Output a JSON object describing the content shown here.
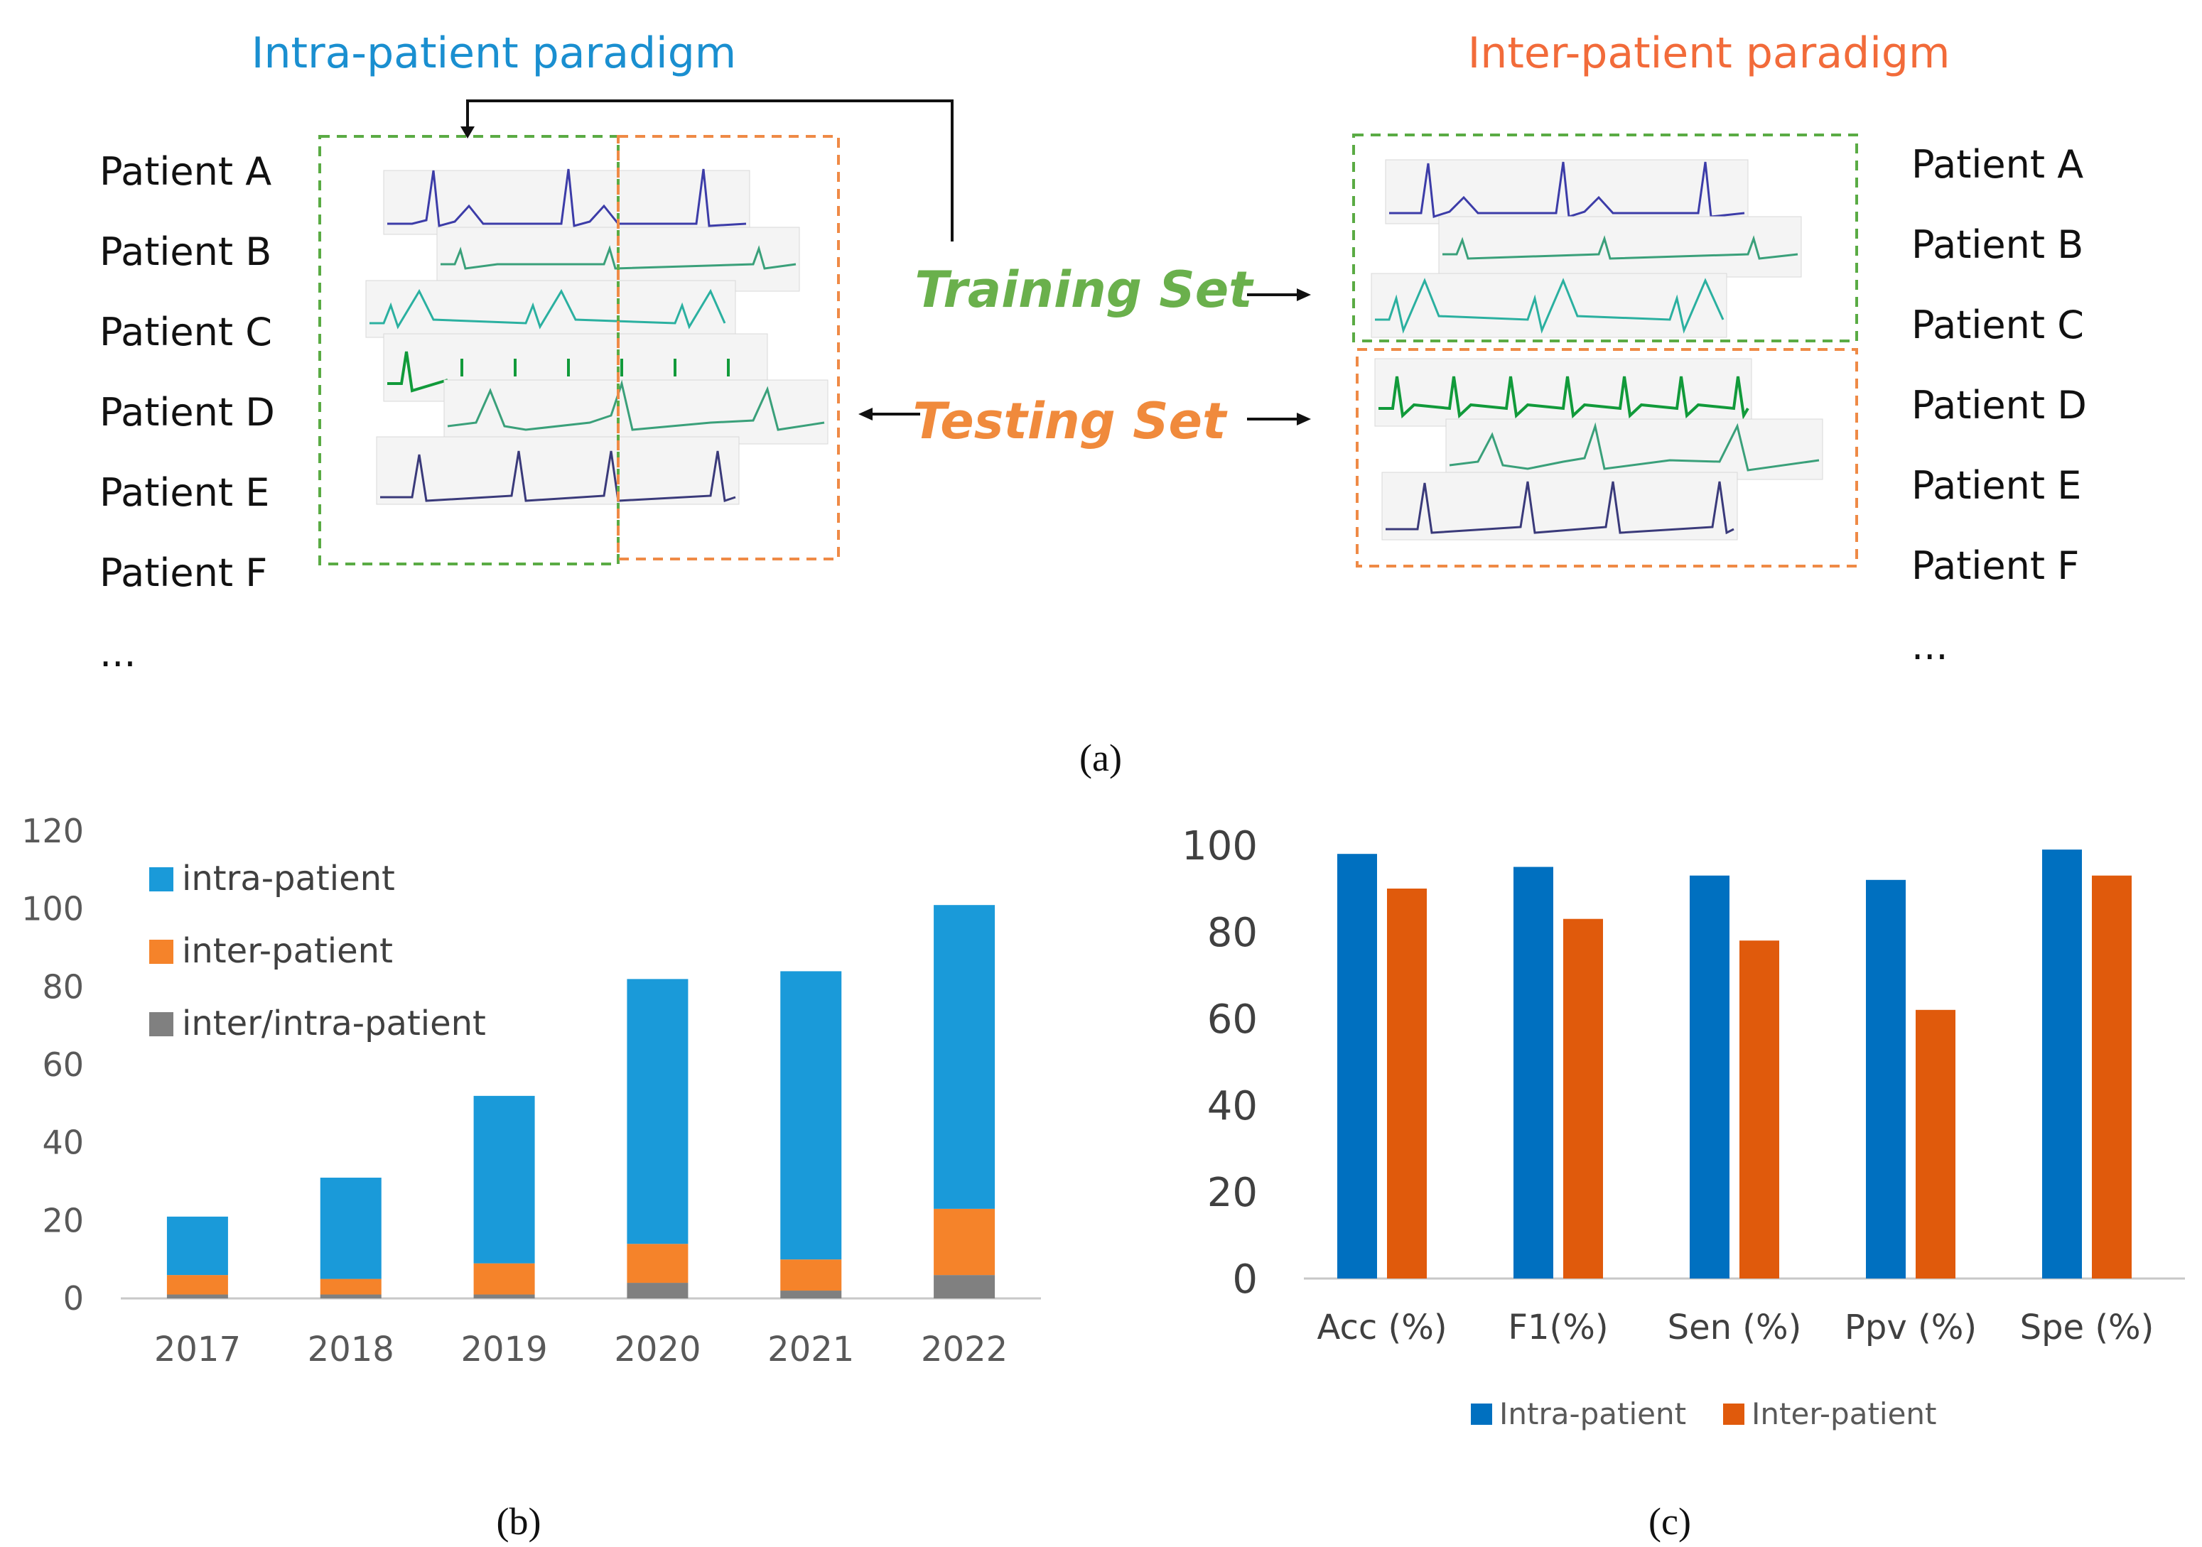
{
  "panel_a": {
    "intra_title": "Intra-patient paradigm",
    "inter_title": "Inter-patient paradigm",
    "patients_left": [
      "Patient A",
      "Patient B",
      "Patient C",
      "Patient D",
      "Patient E",
      "Patient F",
      "..."
    ],
    "patients_right": [
      "Patient A",
      "Patient B",
      "Patient C",
      "Patient D",
      "Patient E",
      "Patient F",
      "..."
    ],
    "training_label": "Training Set",
    "testing_label": "Testing Set",
    "caption": "(a)",
    "colors": {
      "intra_title": "#1a8fd0",
      "inter_title": "#f26b3a",
      "training": "#6ab04c",
      "testing": "#f08a3c",
      "train_box": "#5aab44",
      "test_box": "#ef8a46"
    }
  },
  "panel_b": {
    "caption": "(b)"
  },
  "panel_c": {
    "caption": "(c)"
  },
  "chart_data": [
    {
      "type": "bar",
      "stacked": true,
      "categories": [
        "2017",
        "2018",
        "2019",
        "2020",
        "2021",
        "2022"
      ],
      "series": [
        {
          "name": "inter/intra-patient",
          "values": [
            1,
            1,
            1,
            4,
            2,
            6
          ],
          "color": "#808080"
        },
        {
          "name": "inter-patient",
          "values": [
            5,
            4,
            8,
            10,
            8,
            17
          ],
          "color": "#f5832a"
        },
        {
          "name": "intra-patient",
          "values": [
            15,
            26,
            43,
            68,
            74,
            78
          ],
          "color": "#1a9ad9"
        }
      ],
      "legend": [
        "intra-patient",
        "inter-patient",
        "inter/intra-patient"
      ],
      "yticks": [
        "0",
        "20",
        "40",
        "60",
        "80",
        "100",
        "120"
      ],
      "ylim": [
        0,
        120
      ],
      "legend_position": "top-left"
    },
    {
      "type": "bar",
      "categories": [
        "Acc (%)",
        "F1(%)",
        "Sen (%)",
        "Ppv (%)",
        "Spe (%)"
      ],
      "series": [
        {
          "name": "Intra-patient",
          "values": [
            98,
            95,
            93,
            92,
            99
          ],
          "color": "#0070c0"
        },
        {
          "name": "Inter-patient",
          "values": [
            90,
            83,
            78,
            62,
            93
          ],
          "color": "#e05a0c"
        }
      ],
      "yticks": [
        "0",
        "20",
        "40",
        "60",
        "80",
        "100"
      ],
      "ylim": [
        0,
        100
      ],
      "legend_position": "bottom"
    }
  ]
}
